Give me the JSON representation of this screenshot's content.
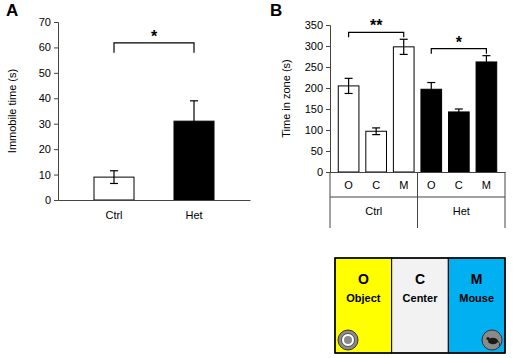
{
  "chart_data": [
    {
      "type": "bar",
      "panel_label": "A",
      "ylabel": "Immobile time (s)",
      "categories": [
        "Ctrl",
        "Het"
      ],
      "values": [
        9,
        31
      ],
      "errors": [
        2.5,
        8
      ],
      "colors": [
        "#ffffff",
        "#000000"
      ],
      "ylim": [
        0,
        70
      ],
      "yticks": [
        0,
        10,
        20,
        30,
        40,
        50,
        60,
        70
      ],
      "annotations": [
        {
          "text": "*",
          "from": 0,
          "to": 1
        }
      ]
    },
    {
      "type": "bar",
      "panel_label": "B",
      "ylabel": "Time in zone (s)",
      "categories": [
        "O",
        "C",
        "M",
        "O",
        "C",
        "M"
      ],
      "groups": [
        "Ctrl",
        "Ctrl",
        "Ctrl",
        "Het",
        "Het",
        "Het"
      ],
      "values": [
        205,
        97,
        298,
        197,
        143,
        262
      ],
      "errors": [
        18,
        8,
        18,
        16,
        7,
        15
      ],
      "colors": [
        "#ffffff",
        "#ffffff",
        "#ffffff",
        "#000000",
        "#000000",
        "#000000"
      ],
      "ylim": [
        0,
        350
      ],
      "yticks": [
        0,
        50,
        100,
        150,
        200,
        250,
        300,
        350
      ],
      "annotations": [
        {
          "text": "**",
          "from": 0,
          "to": 2
        },
        {
          "text": "*",
          "from": 3,
          "to": 5
        }
      ]
    }
  ],
  "zone_diagram": {
    "zones": [
      {
        "letter": "O",
        "label": "Object",
        "color": "#ffff00"
      },
      {
        "letter": "C",
        "label": "Center",
        "color": "#f2f2f2"
      },
      {
        "letter": "M",
        "label": "Mouse",
        "color": "#00b0f0"
      }
    ]
  }
}
